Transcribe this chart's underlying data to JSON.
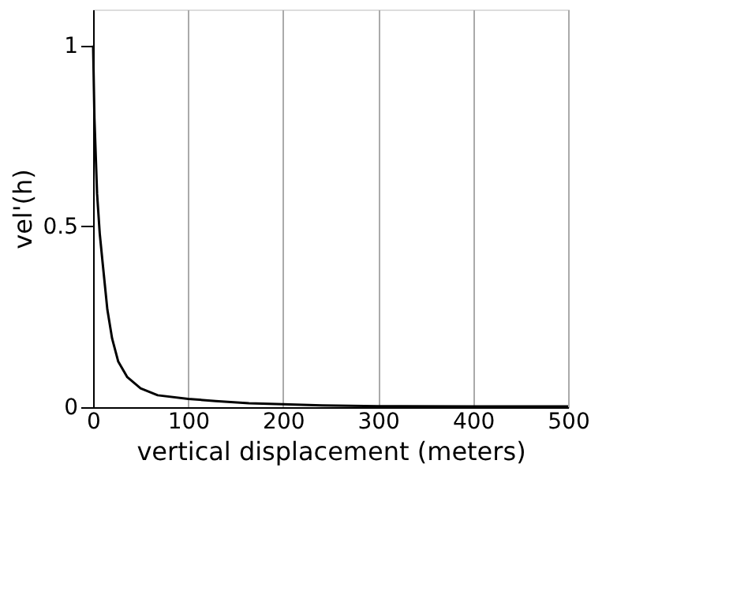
{
  "chart_data": {
    "type": "line",
    "xlabel": "vertical displacement (meters)",
    "ylabel": "vel'(h)",
    "x": [
      0,
      1.4,
      4.2,
      7,
      10,
      15,
      20,
      26.5,
      36,
      50,
      68,
      100,
      129,
      164,
      200,
      241,
      300,
      400,
      500
    ],
    "series": [
      {
        "color": "#000000",
        "values": [
          1.0,
          0.8,
          0.59,
          0.48,
          0.4,
          0.27,
          0.19,
          0.126,
          0.083,
          0.052,
          0.033,
          0.023,
          0.017,
          0.011,
          0.008,
          0.005,
          0.003,
          0.002,
          0.002
        ]
      }
    ],
    "xlim": [
      0,
      500
    ],
    "xticks": [
      0,
      100,
      200,
      300,
      400,
      500
    ],
    "ylim": [
      0,
      1.1
    ],
    "yticks": [
      0,
      0.5,
      1
    ],
    "grid": "x",
    "marker": "none",
    "line_style": "solid"
  }
}
